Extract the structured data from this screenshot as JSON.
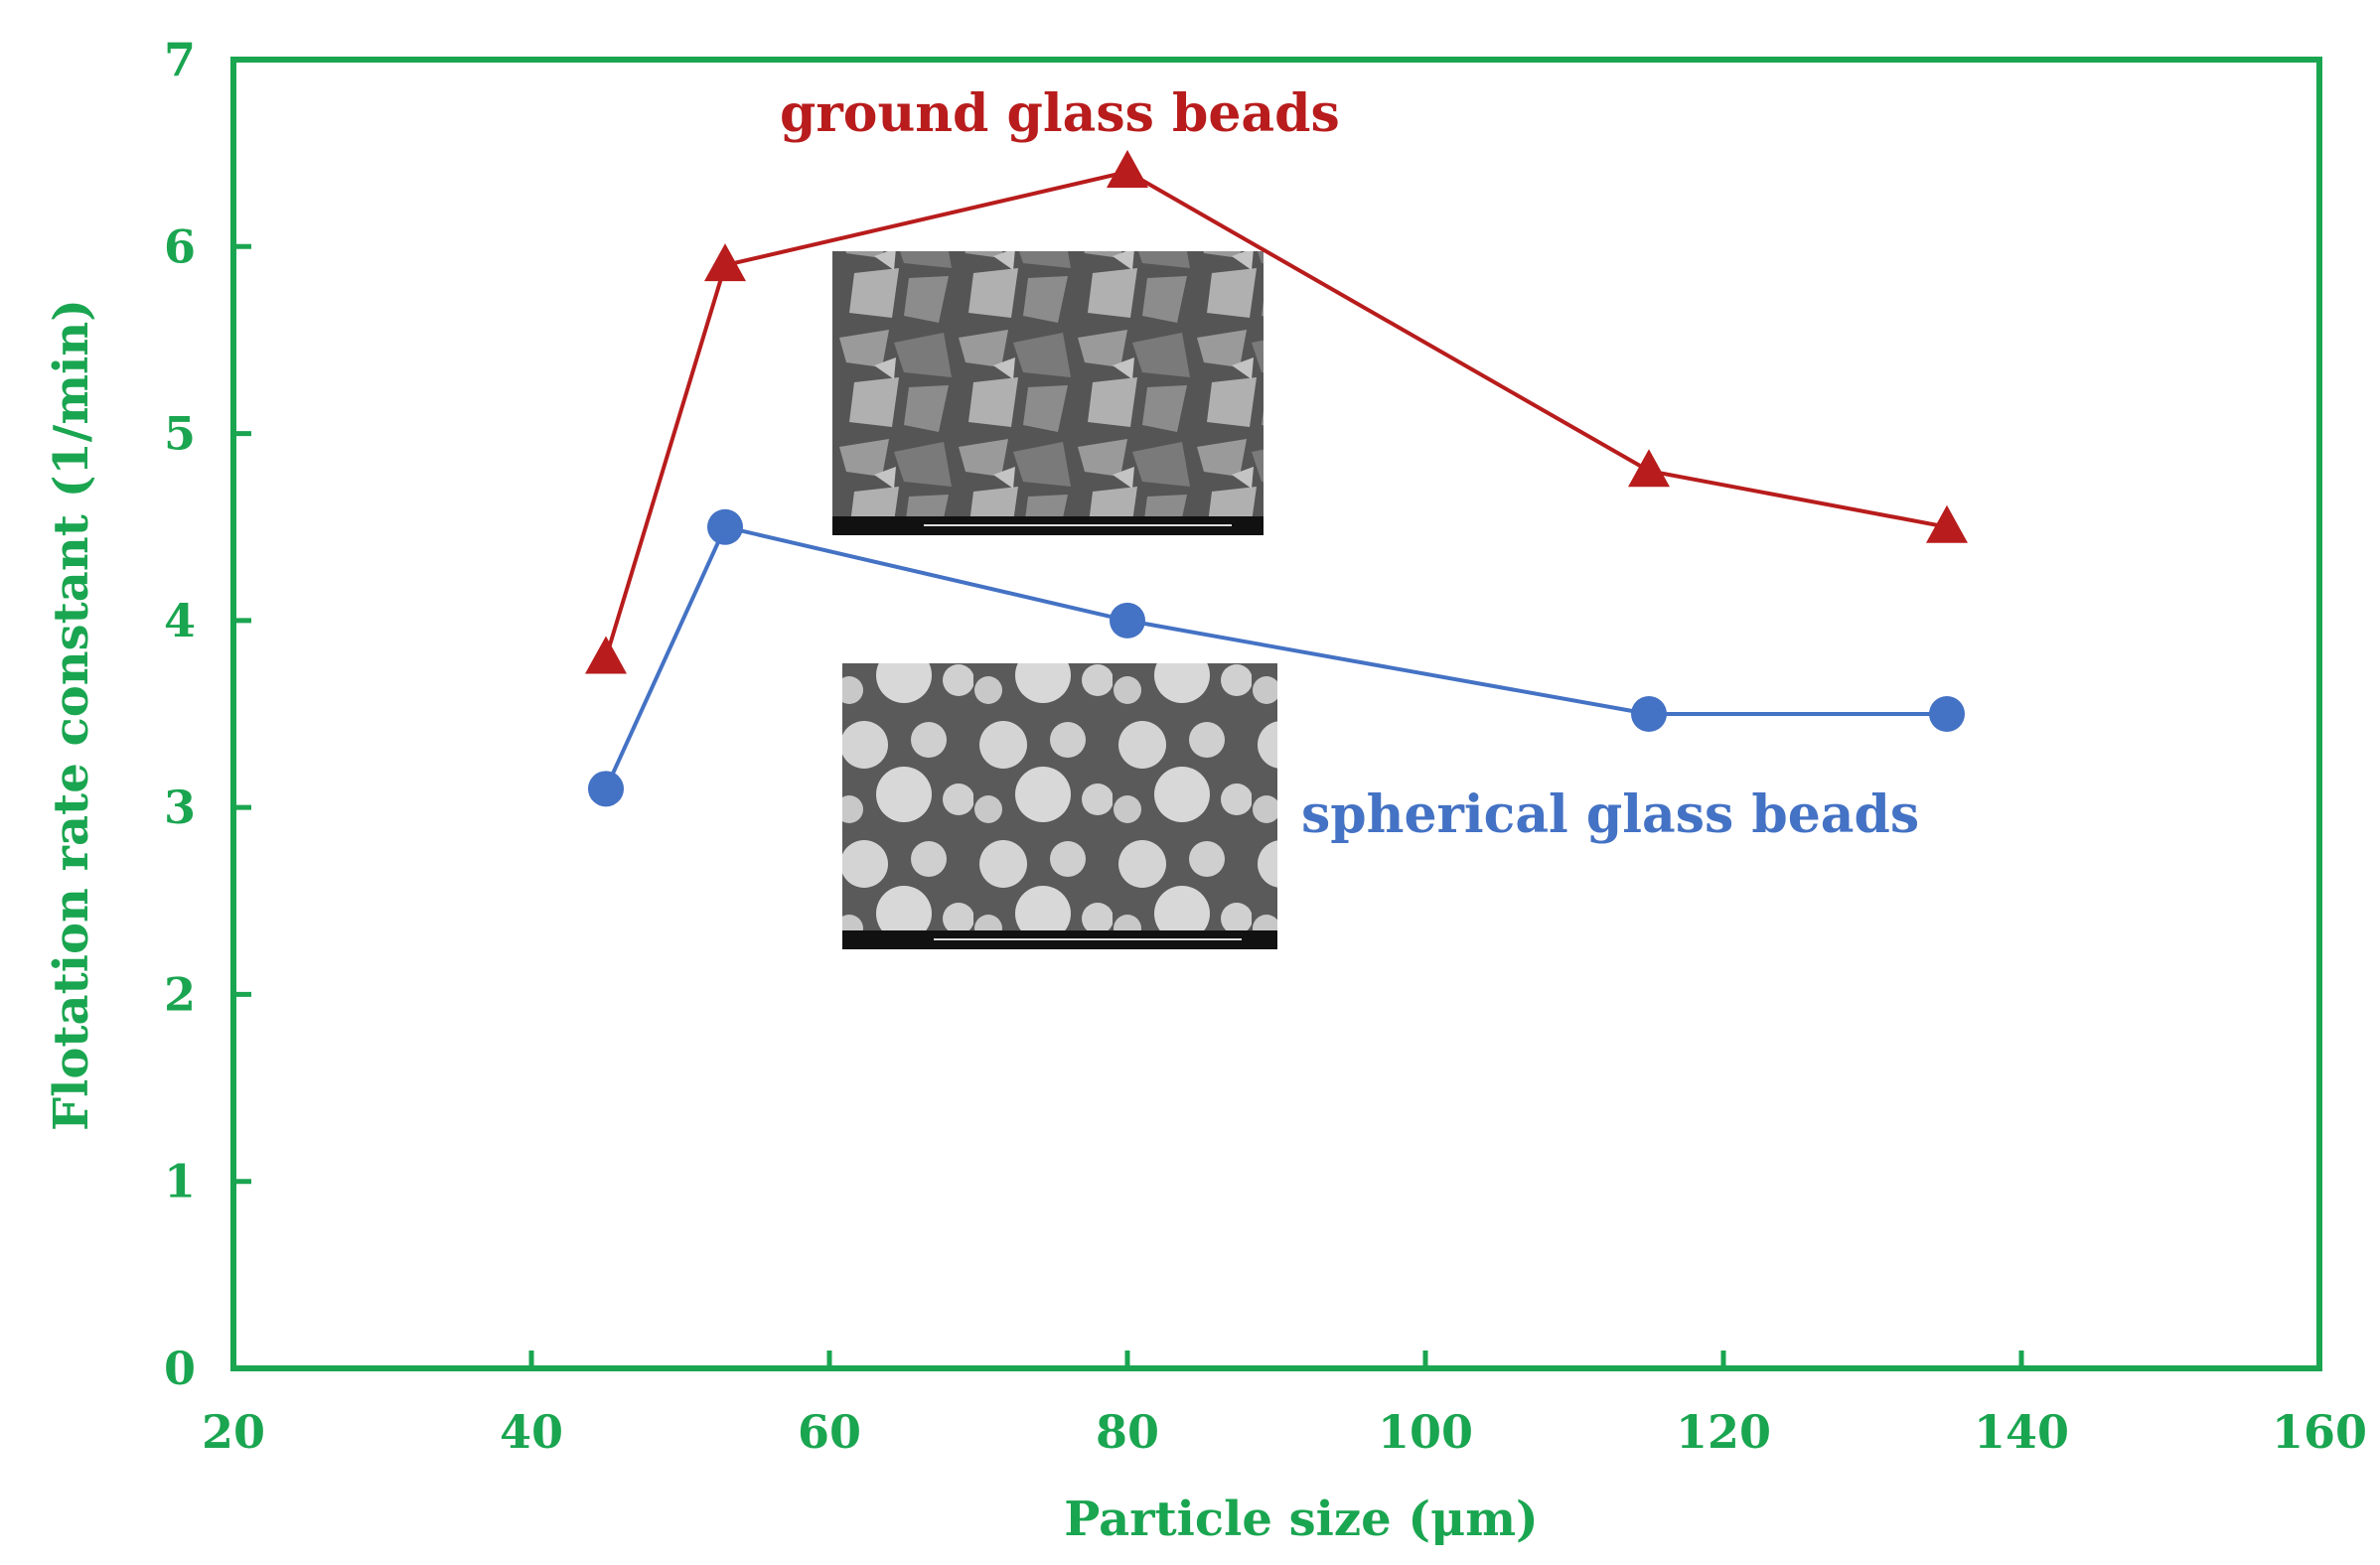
{
  "chart_data": {
    "type": "line",
    "xlabel": "Particle size (μm)",
    "ylabel": "Flotation rate constant (1/min)",
    "xlim": [
      20,
      160
    ],
    "ylim": [
      0,
      7
    ],
    "xticks": [
      20,
      40,
      60,
      80,
      100,
      120,
      140,
      160
    ],
    "yticks": [
      0,
      1,
      2,
      3,
      4,
      5,
      6,
      7
    ],
    "grid": false,
    "legend": "none",
    "colors": {
      "axes": "#1aa550",
      "ground": "#b81c1c",
      "spherical": "#4472c4"
    },
    "series": [
      {
        "name": "ground glass beads",
        "marker": "triangle",
        "color": "#b81c1c",
        "x": [
          45,
          53,
          80,
          115,
          135
        ],
        "y": [
          3.8,
          5.9,
          6.4,
          4.8,
          4.5
        ]
      },
      {
        "name": "spherical glass beads",
        "marker": "circle",
        "color": "#4472c4",
        "x": [
          45,
          53,
          80,
          115,
          135
        ],
        "y": [
          3.1,
          4.5,
          4.0,
          3.5,
          3.5
        ]
      }
    ],
    "insets": [
      "sem-image-ground-glass-beads",
      "sem-image-spherical-glass-beads"
    ]
  }
}
